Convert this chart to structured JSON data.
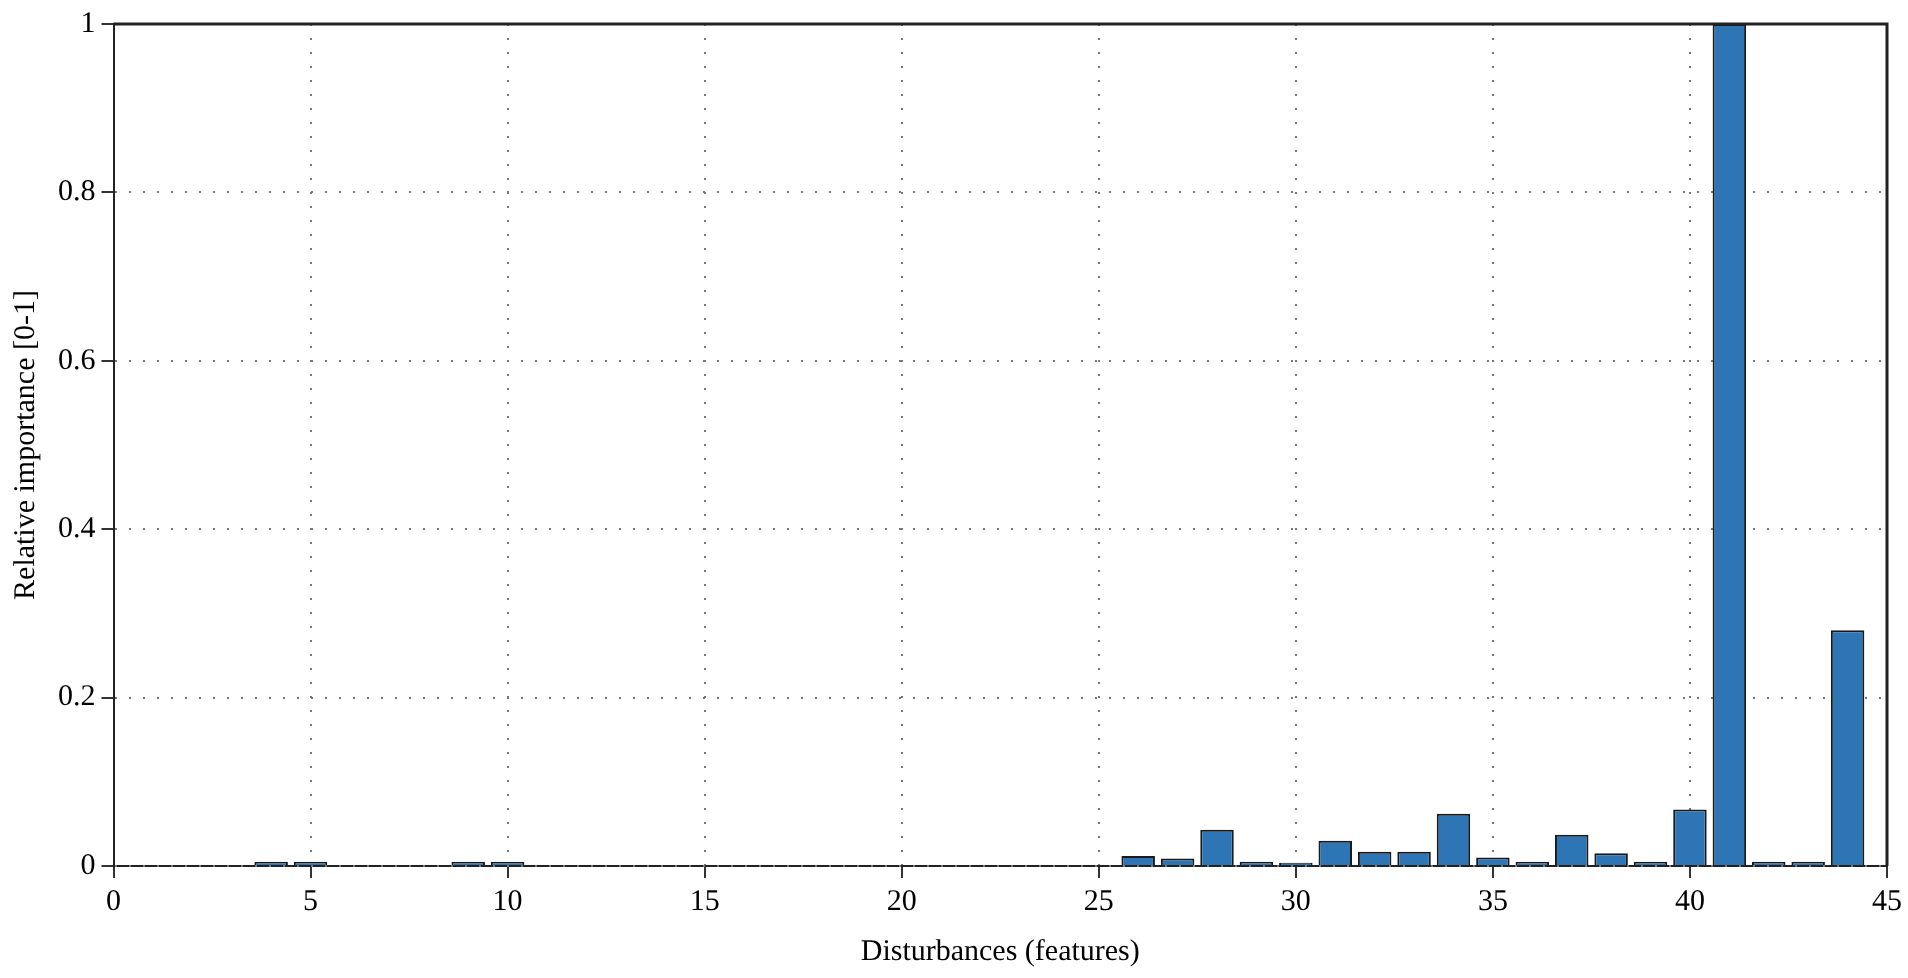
{
  "chart_data": {
    "type": "bar",
    "xlabel": "Disturbances (features)",
    "ylabel": "Relative importance [0-1]",
    "x": [
      1,
      2,
      3,
      4,
      5,
      6,
      7,
      8,
      9,
      10,
      11,
      12,
      13,
      14,
      15,
      16,
      17,
      18,
      19,
      20,
      21,
      22,
      23,
      24,
      25,
      26,
      27,
      28,
      29,
      30,
      31,
      32,
      33,
      34,
      35,
      36,
      37,
      38,
      39,
      40,
      41,
      42,
      43,
      44
    ],
    "values": [
      0,
      0,
      0,
      0.005,
      0.005,
      0,
      0,
      0,
      0.005,
      0.005,
      0,
      0,
      0,
      0,
      0,
      0,
      0,
      0,
      0,
      0,
      0,
      0,
      0,
      0,
      0,
      0.012,
      0.009,
      0.043,
      0.005,
      0.004,
      0.03,
      0.017,
      0.017,
      0.062,
      0.01,
      0.005,
      0.037,
      0.015,
      0.005,
      0.067,
      1,
      0.005,
      0.005,
      0.28
    ],
    "color": "#2e75b6",
    "xlim": [
      0,
      45
    ],
    "xticks": [
      0,
      5,
      10,
      15,
      20,
      25,
      30,
      35,
      40,
      45
    ],
    "ylim": [
      0,
      1
    ],
    "yticks": [
      0,
      0.2,
      0.4,
      0.6,
      0.8,
      1
    ],
    "grid": true,
    "legend": false
  }
}
